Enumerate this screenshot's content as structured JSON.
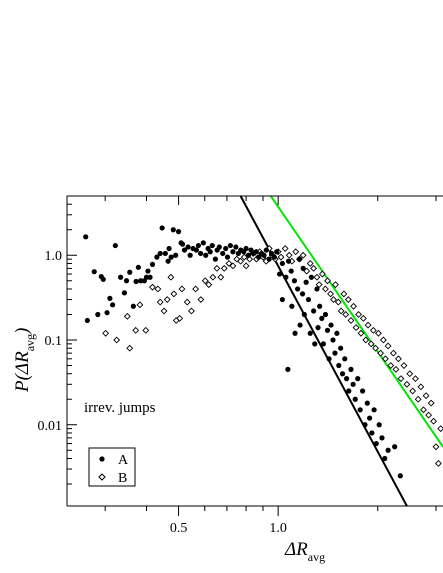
{
  "chart_data": {
    "type": "scatter",
    "title": "",
    "xlabel": "ΔR",
    "xlabel_sub": "avg",
    "ylabel": "P(ΔR",
    "ylabel_close": ")",
    "ylabel_sub": "avg",
    "x_scale": "log",
    "y_scale": "log",
    "xlim": [
      0.23,
      3.15
    ],
    "ylim": [
      0.0011,
      5.0
    ],
    "x_ticks": [
      {
        "value": 0.5,
        "label": "0.5"
      },
      {
        "value": 1.0,
        "label": "1.0"
      }
    ],
    "y_ticks": [
      {
        "value": 1.0,
        "label": "1.0"
      },
      {
        "value": 0.1,
        "label": "0.1"
      },
      {
        "value": 0.01,
        "label": "0.01"
      }
    ],
    "annotation": "irrev. jumps",
    "legend": {
      "position": "bottom-left",
      "entries": [
        "A",
        "B"
      ]
    },
    "grid": false,
    "series": [
      {
        "name": "A",
        "marker": "filled-circle",
        "color": "#000000",
        "points": [
          [
            0.262,
            1.65
          ],
          [
            0.265,
            0.17
          ],
          [
            0.278,
            0.64
          ],
          [
            0.285,
            0.2
          ],
          [
            0.292,
            0.56
          ],
          [
            0.296,
            0.52
          ],
          [
            0.304,
            0.21
          ],
          [
            0.31,
            0.31
          ],
          [
            0.316,
            0.26
          ],
          [
            0.322,
            1.3
          ],
          [
            0.334,
            0.55
          ],
          [
            0.343,
            0.36
          ],
          [
            0.348,
            0.5
          ],
          [
            0.356,
            0.63
          ],
          [
            0.365,
            0.25
          ],
          [
            0.372,
            0.49
          ],
          [
            0.378,
            0.72
          ],
          [
            0.384,
            0.5
          ],
          [
            0.394,
            0.5
          ],
          [
            0.4,
            0.55
          ],
          [
            0.404,
            0.65
          ],
          [
            0.41,
            0.55
          ],
          [
            0.417,
            0.78
          ],
          [
            0.43,
            0.95
          ],
          [
            0.44,
            1.05
          ],
          [
            0.446,
            2.1
          ],
          [
            0.456,
            1.05
          ],
          [
            0.465,
            0.85
          ],
          [
            0.468,
            1.2
          ],
          [
            0.475,
            0.95
          ],
          [
            0.482,
            2.0
          ],
          [
            0.49,
            1.0
          ],
          [
            0.5,
            1.9
          ],
          [
            0.509,
            1.4
          ],
          [
            0.514,
            1.35
          ],
          [
            0.521,
            1.15
          ],
          [
            0.534,
            1.25
          ],
          [
            0.542,
            1.0
          ],
          [
            0.553,
            1.2
          ],
          [
            0.566,
            1.15
          ],
          [
            0.574,
            1.3
          ],
          [
            0.583,
            1.05
          ],
          [
            0.594,
            1.4
          ],
          [
            0.604,
            1.0
          ],
          [
            0.614,
            1.2
          ],
          [
            0.623,
            1.1
          ],
          [
            0.632,
            1.3
          ],
          [
            0.646,
            0.9
          ],
          [
            0.654,
            1.15
          ],
          [
            0.664,
            1.25
          ],
          [
            0.68,
            1.05
          ],
          [
            0.694,
            1.2
          ],
          [
            0.703,
            0.95
          ],
          [
            0.717,
            1.3
          ],
          [
            0.73,
            1.1
          ],
          [
            0.745,
            1.25
          ],
          [
            0.758,
            1.05
          ],
          [
            0.771,
            1.15
          ],
          [
            0.787,
            1.1
          ],
          [
            0.8,
            1.2
          ],
          [
            0.813,
            1.0
          ],
          [
            0.828,
            1.15
          ],
          [
            0.844,
            1.05
          ],
          [
            0.859,
            1.1
          ],
          [
            0.873,
            0.95
          ],
          [
            0.891,
            1.05
          ],
          [
            0.906,
            1.0
          ],
          [
            0.921,
            1.15
          ],
          [
            0.939,
            0.9
          ],
          [
            0.955,
            1.05
          ],
          [
            0.974,
            0.95
          ],
          [
            0.99,
            1.1
          ],
          [
            1.01,
            0.6
          ],
          [
            1.03,
            0.8
          ],
          [
            1.03,
            0.3
          ],
          [
            1.055,
            0.55
          ],
          [
            1.07,
            0.045
          ],
          [
            1.075,
            0.85
          ],
          [
            1.095,
            0.65
          ],
          [
            1.1,
            0.25
          ],
          [
            1.12,
            0.5
          ],
          [
            1.125,
            0.12
          ],
          [
            1.145,
            0.4
          ],
          [
            1.16,
            0.9
          ],
          [
            1.165,
            0.15
          ],
          [
            1.185,
            0.35
          ],
          [
            1.19,
            0.7
          ],
          [
            1.2,
            0.2
          ],
          [
            1.215,
            0.48
          ],
          [
            1.235,
            0.3
          ],
          [
            1.25,
            0.12
          ],
          [
            1.26,
            0.55
          ],
          [
            1.28,
            0.22
          ],
          [
            1.29,
            0.09
          ],
          [
            1.31,
            0.4
          ],
          [
            1.32,
            0.14
          ],
          [
            1.335,
            0.25
          ],
          [
            1.355,
            0.18
          ],
          [
            1.37,
            0.09
          ],
          [
            1.39,
            0.2
          ],
          [
            1.41,
            0.13
          ],
          [
            1.425,
            0.06
          ],
          [
            1.445,
            0.15
          ],
          [
            1.465,
            0.1
          ],
          [
            1.485,
            0.07
          ],
          [
            1.505,
            0.12
          ],
          [
            1.525,
            0.05
          ],
          [
            1.545,
            0.08
          ],
          [
            1.565,
            0.04
          ],
          [
            1.59,
            0.06
          ],
          [
            1.61,
            0.035
          ],
          [
            1.635,
            0.025
          ],
          [
            1.66,
            0.045
          ],
          [
            1.685,
            0.03
          ],
          [
            1.71,
            0.02
          ],
          [
            1.74,
            0.035
          ],
          [
            1.77,
            0.015
          ],
          [
            1.8,
            0.025
          ],
          [
            1.83,
            0.01
          ],
          [
            1.86,
            0.018
          ],
          [
            1.89,
            0.012
          ],
          [
            1.92,
            0.008
          ],
          [
            1.95,
            0.015
          ],
          [
            1.98,
            0.006
          ],
          [
            2.02,
            0.01
          ],
          [
            2.06,
            0.007
          ],
          [
            2.1,
            0.004
          ],
          [
            2.15,
            0.005
          ],
          [
            2.25,
            0.0055
          ],
          [
            2.34,
            0.0025
          ]
        ]
      },
      {
        "name": "B",
        "marker": "open-diamond",
        "color": "#000000",
        "points": [
          [
            0.301,
            0.12
          ],
          [
            0.325,
            0.1
          ],
          [
            0.35,
            0.19
          ],
          [
            0.356,
            0.08
          ],
          [
            0.371,
            0.13
          ],
          [
            0.382,
            0.26
          ],
          [
            0.398,
            0.13
          ],
          [
            0.417,
            0.42
          ],
          [
            0.433,
            0.4
          ],
          [
            0.44,
            0.28
          ],
          [
            0.452,
            0.22
          ],
          [
            0.462,
            0.3
          ],
          [
            0.474,
            0.55
          ],
          [
            0.484,
            0.35
          ],
          [
            0.492,
            0.17
          ],
          [
            0.504,
            0.18
          ],
          [
            0.512,
            0.4
          ],
          [
            0.531,
            0.28
          ],
          [
            0.547,
            0.22
          ],
          [
            0.563,
            0.4
          ],
          [
            0.584,
            0.3
          ],
          [
            0.602,
            0.5
          ],
          [
            0.617,
            0.45
          ],
          [
            0.635,
            0.55
          ],
          [
            0.653,
            0.7
          ],
          [
            0.671,
            0.55
          ],
          [
            0.687,
            0.7
          ],
          [
            0.71,
            0.8
          ],
          [
            0.73,
            0.75
          ],
          [
            0.75,
            0.9
          ],
          [
            0.77,
            0.85
          ],
          [
            0.79,
            0.95
          ],
          [
            0.8,
            0.75
          ],
          [
            0.82,
            0.9
          ],
          [
            0.84,
            1.05
          ],
          [
            0.86,
            0.9
          ],
          [
            0.88,
            1.1
          ],
          [
            0.9,
            0.95
          ],
          [
            0.92,
            0.85
          ],
          [
            0.94,
            1.2
          ],
          [
            0.96,
            1.0
          ],
          [
            0.98,
            0.9
          ],
          [
            1.0,
            1.1
          ],
          [
            1.02,
            0.95
          ],
          [
            1.05,
            1.2
          ],
          [
            1.08,
            1.0
          ],
          [
            1.1,
            0.85
          ],
          [
            1.13,
            1.1
          ],
          [
            1.16,
            0.9
          ],
          [
            1.19,
            1.0
          ],
          [
            1.22,
            0.65
          ],
          [
            1.25,
            0.8
          ],
          [
            1.28,
            0.7
          ],
          [
            1.31,
            0.55
          ],
          [
            1.33,
            0.45
          ],
          [
            1.36,
            0.6
          ],
          [
            1.39,
            0.4
          ],
          [
            1.41,
            0.5
          ],
          [
            1.44,
            0.35
          ],
          [
            1.47,
            0.3
          ],
          [
            1.49,
            0.45
          ],
          [
            1.52,
            0.28
          ],
          [
            1.55,
            0.22
          ],
          [
            1.58,
            0.35
          ],
          [
            1.6,
            0.2
          ],
          [
            1.63,
            0.3
          ],
          [
            1.66,
            0.17
          ],
          [
            1.69,
            0.25
          ],
          [
            1.72,
            0.14
          ],
          [
            1.75,
            0.2
          ],
          [
            1.78,
            0.12
          ],
          [
            1.81,
            0.18
          ],
          [
            1.84,
            0.1
          ],
          [
            1.87,
            0.15
          ],
          [
            1.91,
            0.09
          ],
          [
            1.94,
            0.13
          ],
          [
            1.97,
            0.08
          ],
          [
            2.01,
            0.12
          ],
          [
            2.04,
            0.07
          ],
          [
            2.08,
            0.1
          ],
          [
            2.11,
            0.06
          ],
          [
            2.15,
            0.085
          ],
          [
            2.19,
            0.05
          ],
          [
            2.23,
            0.07
          ],
          [
            2.27,
            0.045
          ],
          [
            2.31,
            0.06
          ],
          [
            2.35,
            0.035
          ],
          [
            2.4,
            0.05
          ],
          [
            2.45,
            0.03
          ],
          [
            2.5,
            0.04
          ],
          [
            2.55,
            0.025
          ],
          [
            2.6,
            0.035
          ],
          [
            2.65,
            0.02
          ],
          [
            2.7,
            0.028
          ],
          [
            2.75,
            0.015
          ],
          [
            2.8,
            0.022
          ],
          [
            2.85,
            0.013
          ],
          [
            2.9,
            0.018
          ],
          [
            2.95,
            0.011
          ],
          [
            3.0,
            0.0055
          ],
          [
            3.05,
            0.0035
          ],
          [
            3.1,
            0.009
          ]
        ]
      }
    ],
    "lines": [
      {
        "color": "#000000",
        "points": [
          [
            0.77,
            5.0
          ],
          [
            2.45,
            0.0011
          ]
        ]
      },
      {
        "color": "#00e600",
        "points": [
          [
            0.95,
            5.0
          ],
          [
            3.15,
            0.0055
          ]
        ]
      }
    ]
  }
}
